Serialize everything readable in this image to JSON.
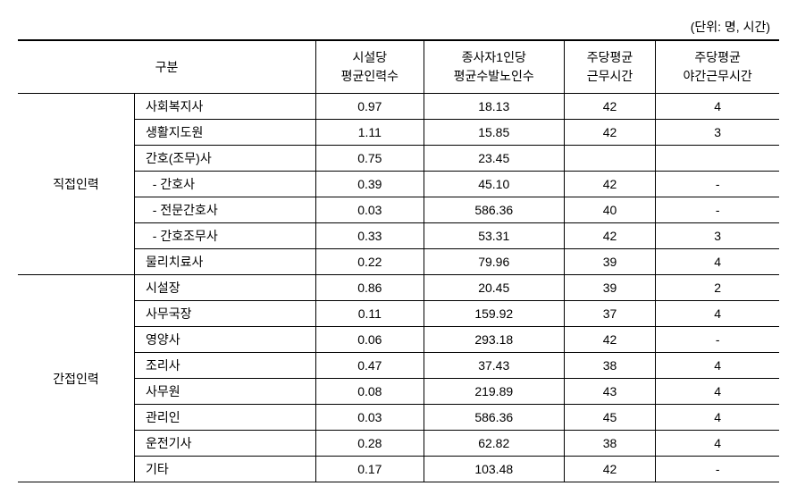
{
  "unit_label": "(단위: 명, 시간)",
  "headers": {
    "category": "구분",
    "col1_line1": "시설당",
    "col1_line2": "평균인력수",
    "col2_line1": "종사자1인당",
    "col2_line2": "평균수발노인수",
    "col3_line1": "주당평균",
    "col3_line2": "근무시간",
    "col4_line1": "주당평균",
    "col4_line2": "야간근무시간"
  },
  "group1": {
    "name": "직접인력",
    "rows": [
      {
        "role": "사회복지사",
        "c1": "0.97",
        "c2": "18.13",
        "c3": "42",
        "c4": "4"
      },
      {
        "role": "생활지도원",
        "c1": "1.11",
        "c2": "15.85",
        "c3": "42",
        "c4": "3"
      },
      {
        "role": "간호(조무)사",
        "c1": "0.75",
        "c2": "23.45",
        "c3": "",
        "c4": ""
      },
      {
        "role": "  - 간호사",
        "c1": "0.39",
        "c2": "45.10",
        "c3": "42",
        "c4": "-"
      },
      {
        "role": "  - 전문간호사",
        "c1": "0.03",
        "c2": "586.36",
        "c3": "40",
        "c4": "-"
      },
      {
        "role": "  - 간호조무사",
        "c1": "0.33",
        "c2": "53.31",
        "c3": "42",
        "c4": "3"
      },
      {
        "role": "물리치료사",
        "c1": "0.22",
        "c2": "79.96",
        "c3": "39",
        "c4": "4"
      }
    ]
  },
  "group2": {
    "name": "간접인력",
    "rows": [
      {
        "role": "시설장",
        "c1": "0.86",
        "c2": "20.45",
        "c3": "39",
        "c4": "2"
      },
      {
        "role": "사무국장",
        "c1": "0.11",
        "c2": "159.92",
        "c3": "37",
        "c4": "4"
      },
      {
        "role": "영양사",
        "c1": "0.06",
        "c2": "293.18",
        "c3": "42",
        "c4": "-"
      },
      {
        "role": "조리사",
        "c1": "0.47",
        "c2": "37.43",
        "c3": "38",
        "c4": "4"
      },
      {
        "role": "사무원",
        "c1": "0.08",
        "c2": "219.89",
        "c3": "43",
        "c4": "4"
      },
      {
        "role": "관리인",
        "c1": "0.03",
        "c2": "586.36",
        "c3": "45",
        "c4": "4"
      },
      {
        "role": "운전기사",
        "c1": "0.28",
        "c2": "62.82",
        "c3": "38",
        "c4": "4"
      },
      {
        "role": "기타",
        "c1": "0.17",
        "c2": "103.48",
        "c3": "42",
        "c4": "-"
      }
    ]
  }
}
